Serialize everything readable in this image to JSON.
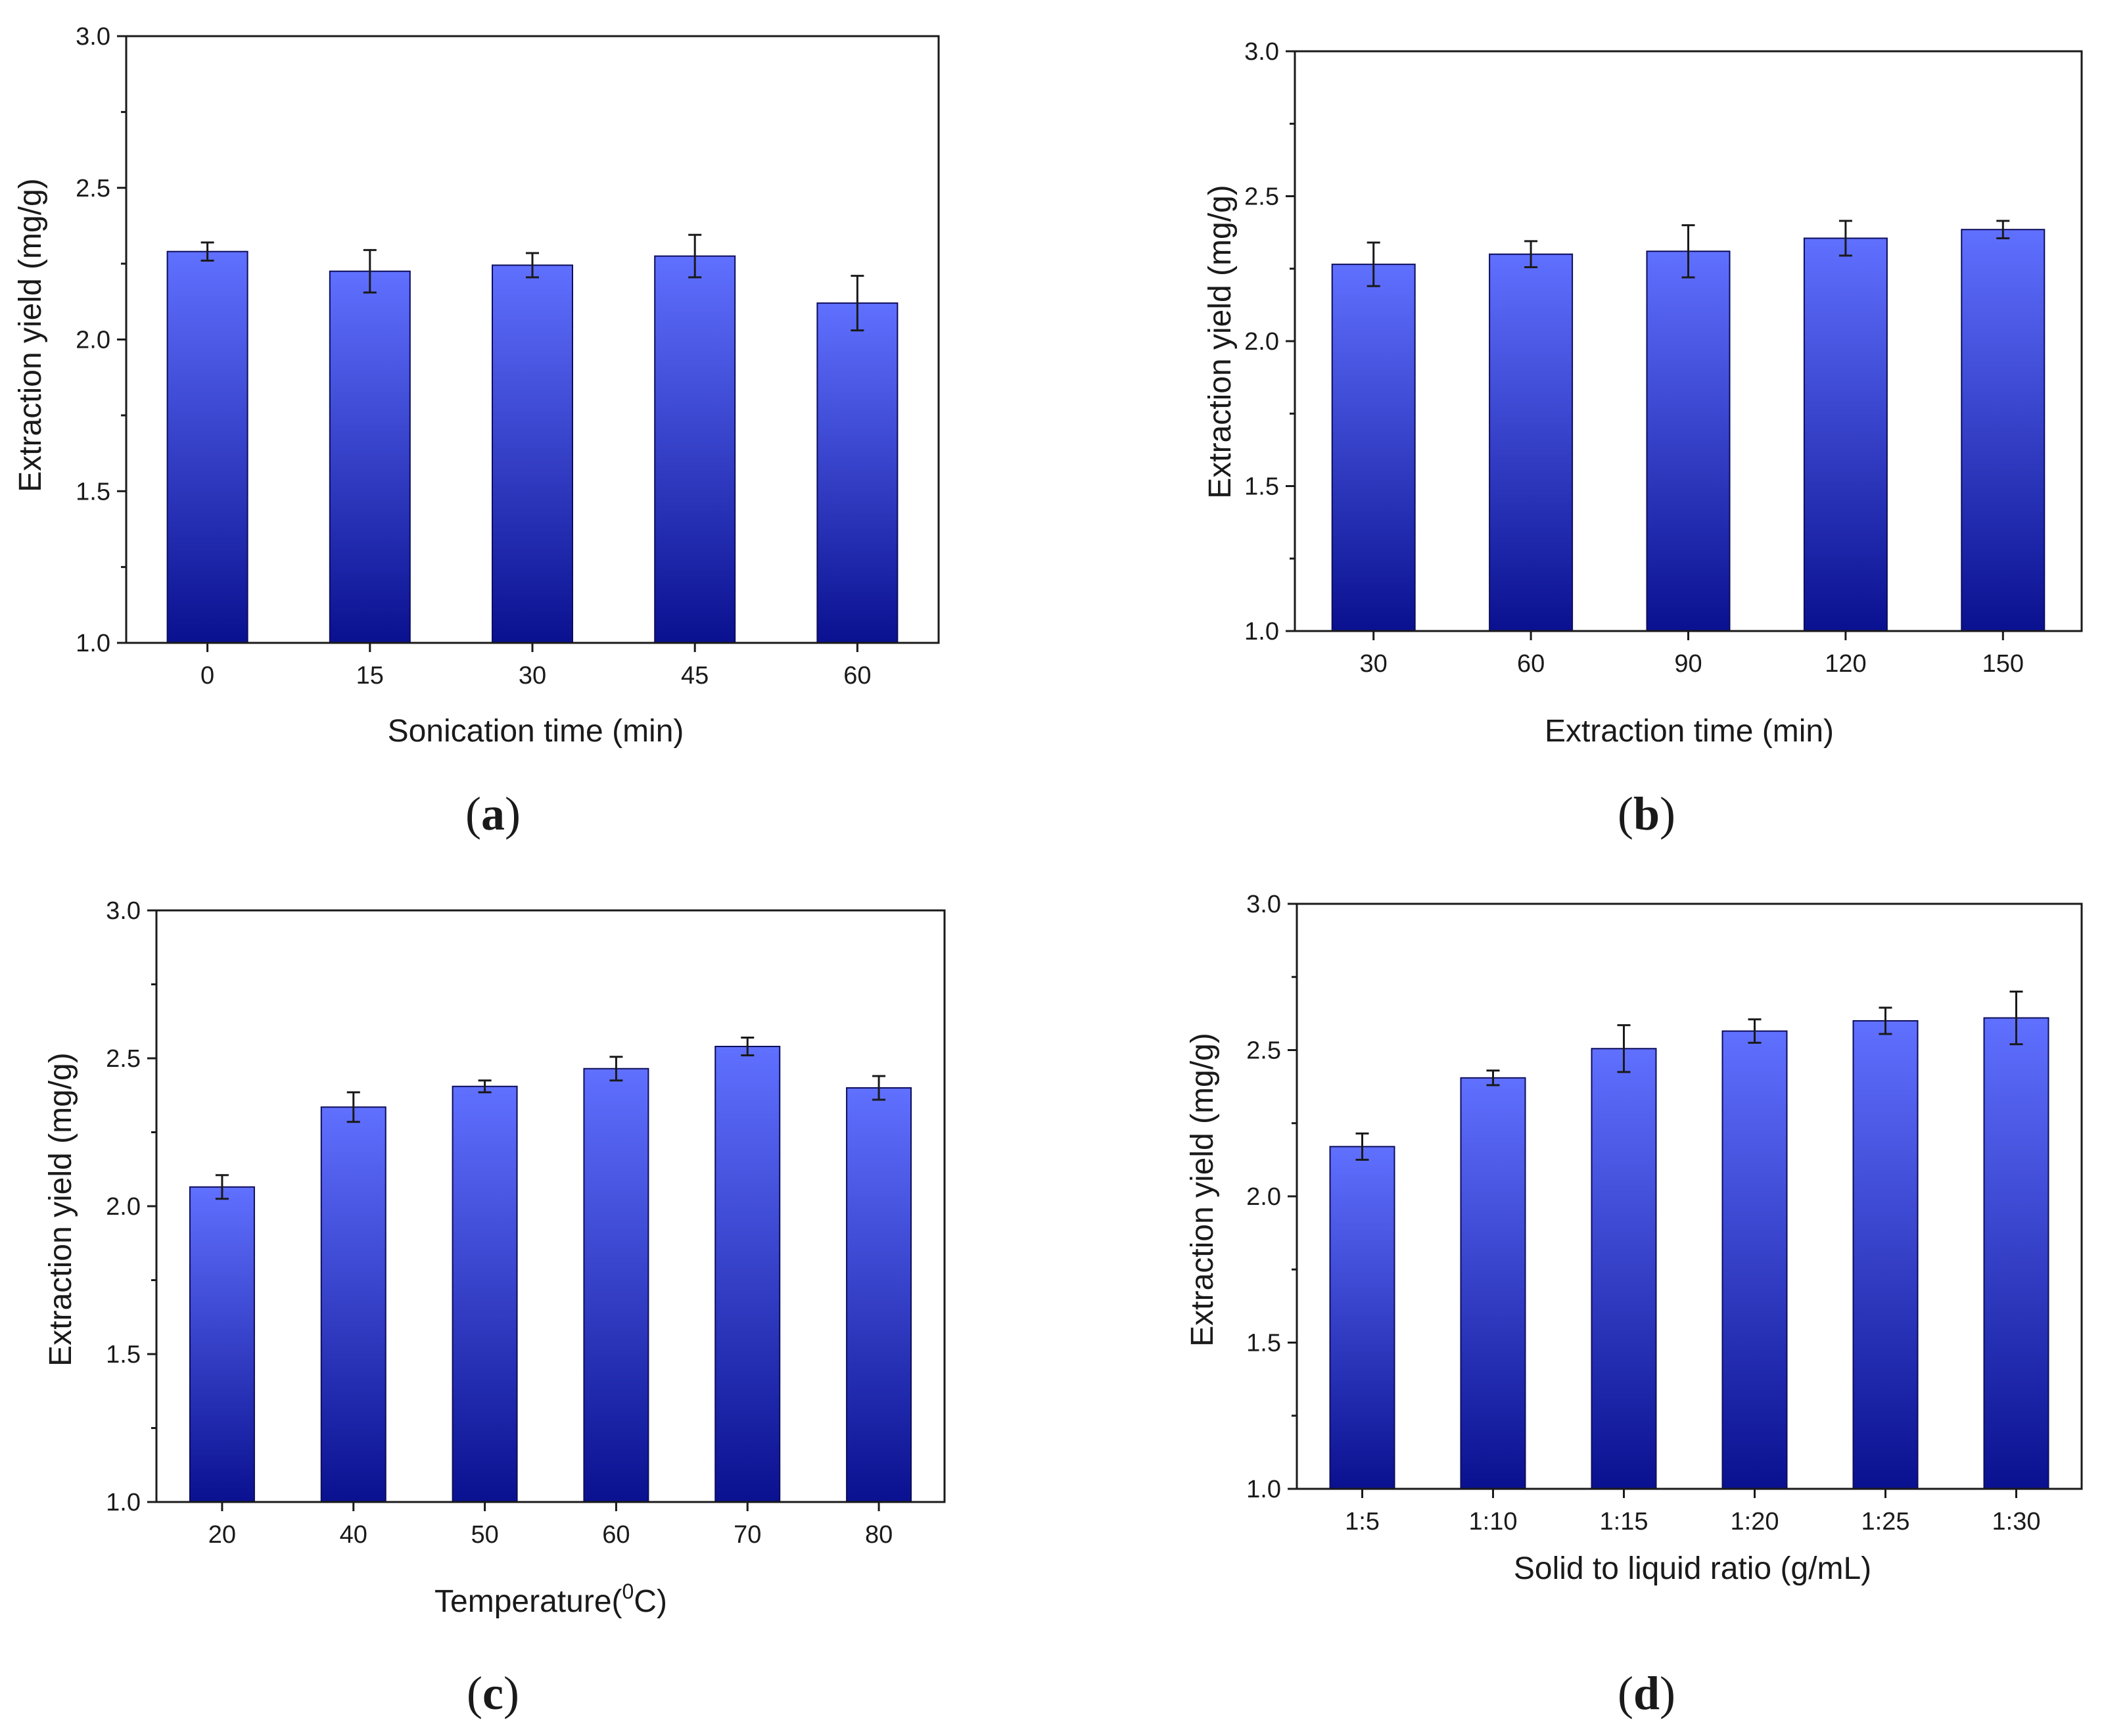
{
  "figure": {
    "panel_labels": [
      "a",
      "b",
      "c",
      "d"
    ]
  },
  "colors": {
    "bar_top": "#6070ff",
    "bar_bottom": "#0a1190",
    "bar_edge": "#0d0d5a",
    "axis": "#1a1a1a",
    "error_bar": "#1a1a1a"
  },
  "chart_data": [
    {
      "id": "a",
      "type": "bar",
      "categories": [
        "0",
        "15",
        "30",
        "45",
        "60"
      ],
      "values": [
        2.29,
        2.225,
        2.245,
        2.275,
        2.12
      ],
      "errors": [
        0.03,
        0.07,
        0.04,
        0.07,
        0.09
      ],
      "xlabel": "Sonication time (min)",
      "ylabel": "Extraction yield (mg/g)",
      "ylim": [
        1.0,
        3.0
      ],
      "yticks": [
        "1.0",
        "1.5",
        "2.0",
        "2.5",
        "3.0"
      ],
      "grid": false
    },
    {
      "id": "b",
      "type": "bar",
      "categories": [
        "30",
        "60",
        "90",
        "120",
        "150"
      ],
      "values": [
        2.265,
        2.3,
        2.31,
        2.355,
        2.385
      ],
      "errors": [
        0.075,
        0.045,
        0.09,
        0.06,
        0.03
      ],
      "xlabel": "Extraction time (min)",
      "ylabel": "Extraction yield (mg/g)",
      "ylim": [
        1.0,
        3.0
      ],
      "yticks": [
        "1.0",
        "1.5",
        "2.0",
        "2.5",
        "3.0"
      ],
      "grid": false
    },
    {
      "id": "c",
      "type": "bar",
      "categories": [
        "20",
        "40",
        "50",
        "60",
        "70",
        "80"
      ],
      "values": [
        2.065,
        2.335,
        2.405,
        2.465,
        2.54,
        2.4
      ],
      "errors": [
        0.04,
        0.05,
        0.02,
        0.04,
        0.03,
        0.04
      ],
      "xlabel": "Temperature(",
      "xlabel_superscript": "0",
      "xlabel_suffix": "C)",
      "ylabel": "Extraction yield (mg/g)",
      "ylim": [
        1.0,
        3.0
      ],
      "yticks": [
        "1.0",
        "1.5",
        "2.0",
        "2.5",
        "3.0"
      ],
      "grid": false
    },
    {
      "id": "d",
      "type": "bar",
      "categories": [
        "1:5",
        "1:10",
        "1:15",
        "1:20",
        "1:25",
        "1:30"
      ],
      "values": [
        2.17,
        2.405,
        2.505,
        2.565,
        2.6,
        2.61
      ],
      "errors": [
        0.045,
        0.025,
        0.08,
        0.04,
        0.045,
        0.09
      ],
      "xlabel": "Solid to liquid ratio (g/mL)",
      "ylabel": "Extraction yield (mg/g)",
      "ylim": [
        1.0,
        3.0
      ],
      "yticks": [
        "1.0",
        "1.5",
        "2.0",
        "2.5",
        "3.0"
      ],
      "grid": false
    }
  ]
}
